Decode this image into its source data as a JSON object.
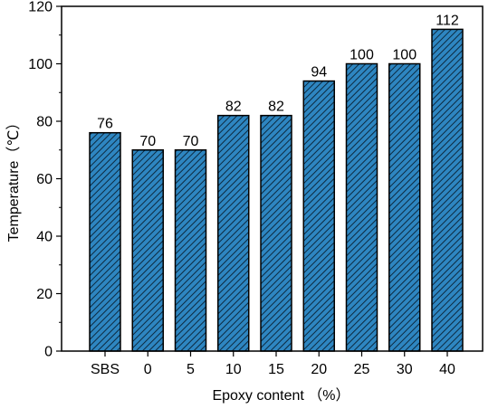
{
  "chart_data": {
    "type": "bar",
    "categories": [
      "SBS",
      "0",
      "5",
      "10",
      "15",
      "20",
      "25",
      "30",
      "40"
    ],
    "values": [
      76,
      70,
      70,
      82,
      82,
      94,
      100,
      100,
      112
    ],
    "data_labels": [
      "76",
      "70",
      "70",
      "82",
      "82",
      "94",
      "100",
      "100",
      "112"
    ],
    "xlabel": "Epoxy content （%）",
    "ylabel": "Temperature（℃）",
    "ylim": [
      0,
      120
    ],
    "yticks": [
      0,
      20,
      40,
      60,
      80,
      100,
      120
    ],
    "ytick_labels": [
      "0",
      "20",
      "40",
      "60",
      "80",
      "100",
      "120"
    ],
    "grid": false,
    "legend": "none",
    "bar_fill": "#2e86c1",
    "hatch": "diagonal",
    "bar_stroke": "#000000"
  }
}
